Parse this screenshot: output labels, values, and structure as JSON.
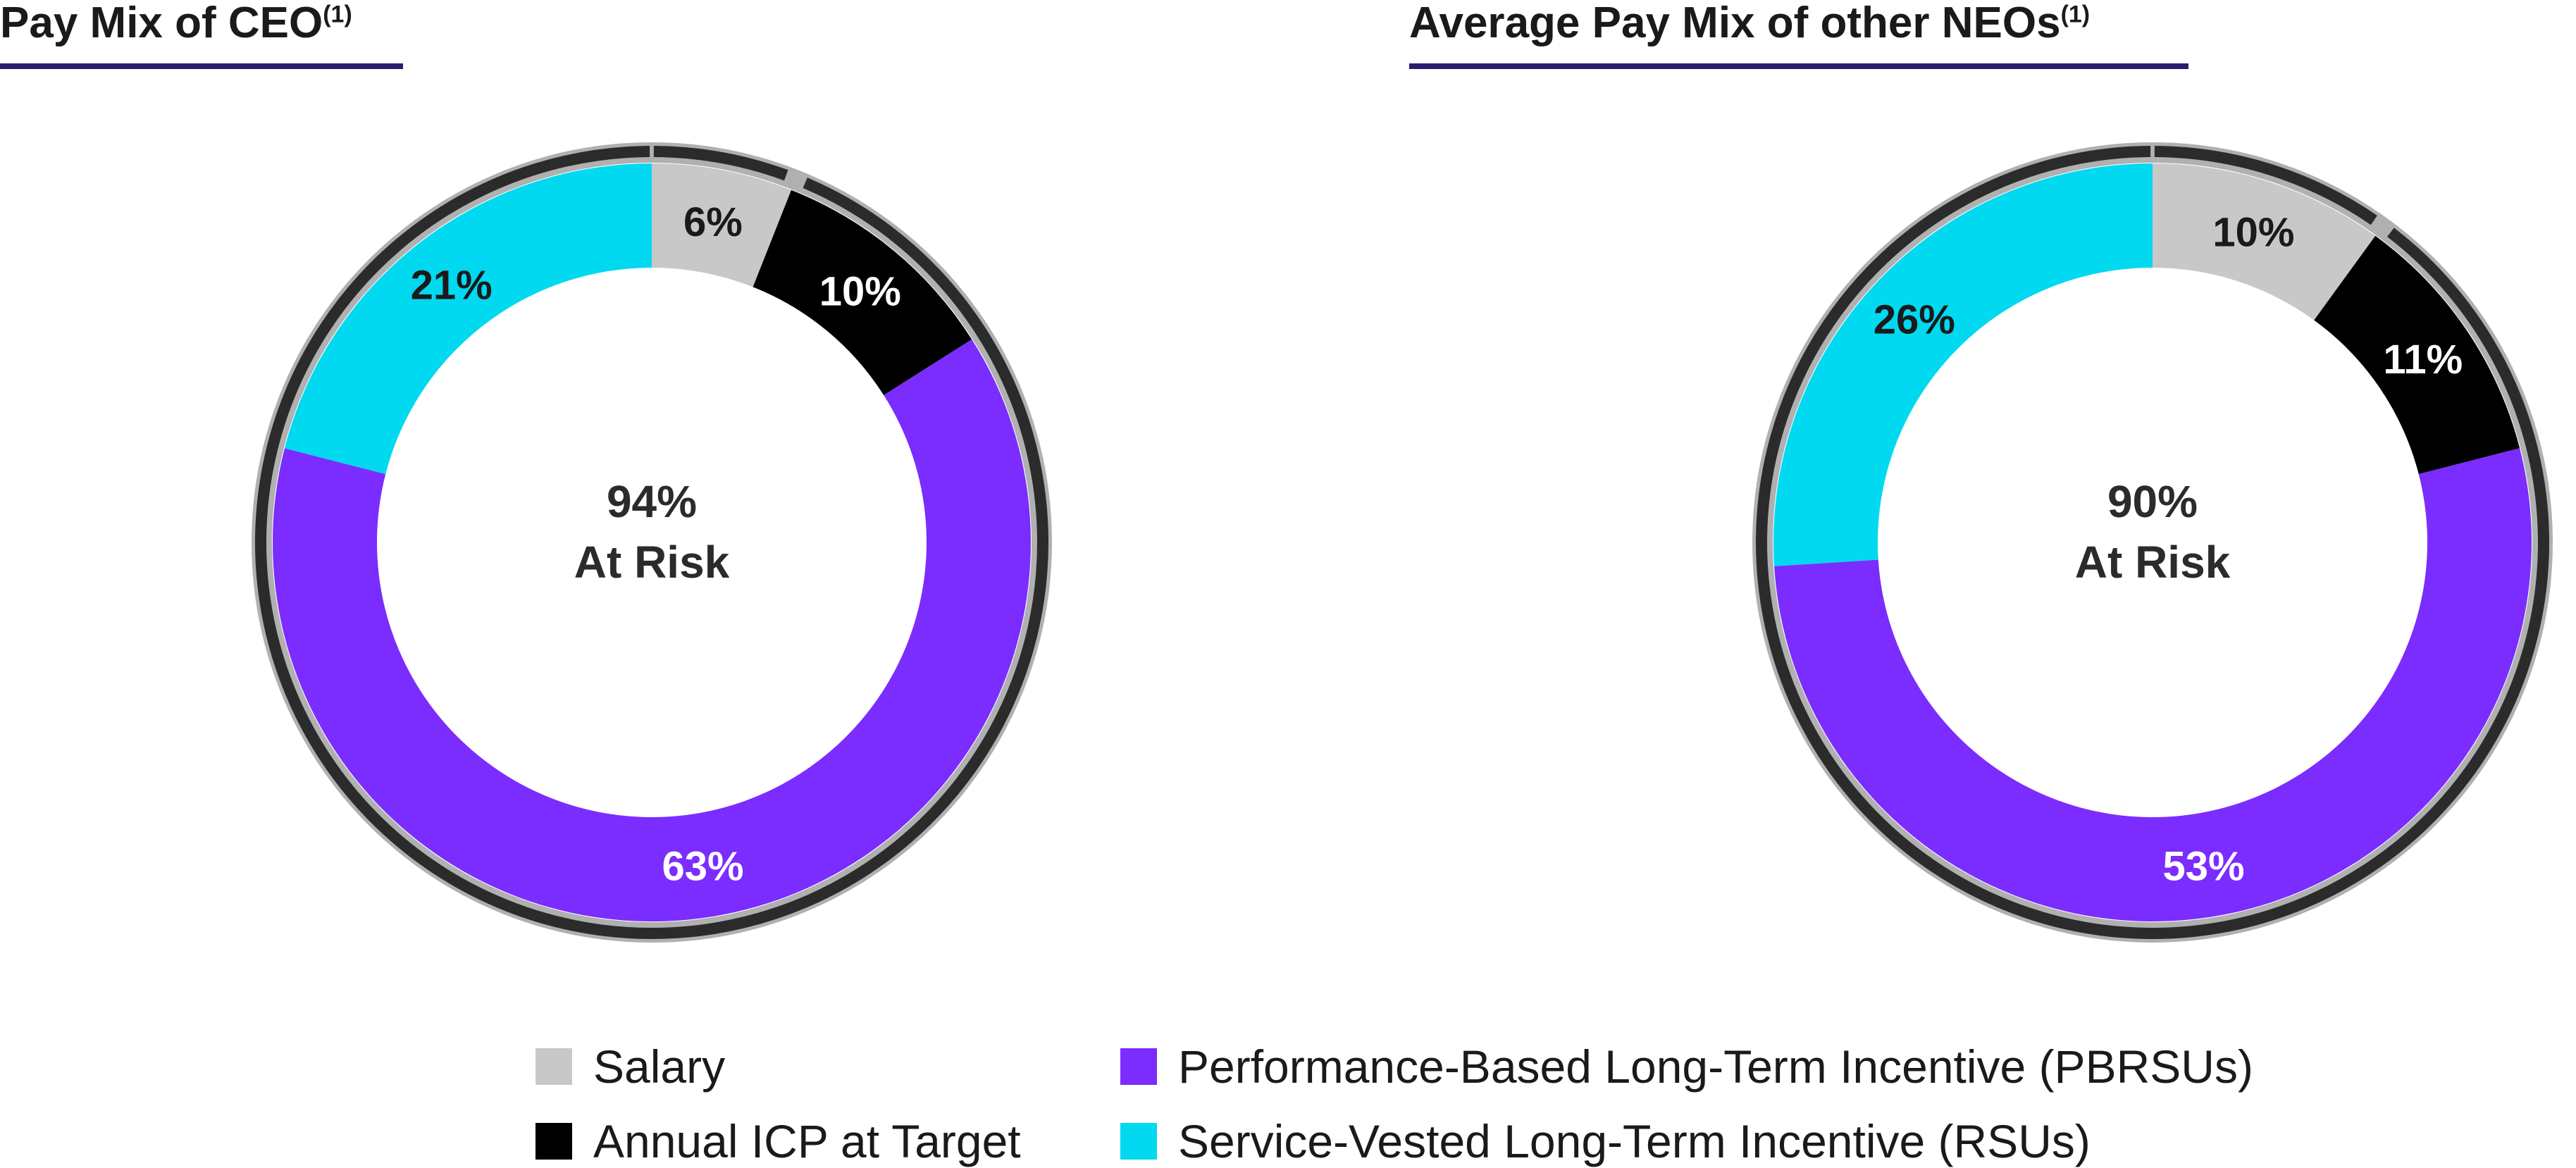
{
  "chart_data": [
    {
      "type": "pie",
      "title": "Pay Mix of CEO",
      "title_footnote": "(1)",
      "center_label": [
        "94%",
        "At Risk"
      ],
      "slices": [
        {
          "label": "Salary",
          "value": 6,
          "text": "6%",
          "color": "#c8c8c8",
          "text_color": "#1a1a1a"
        },
        {
          "label": "Annual ICP at Target",
          "value": 10,
          "text": "10%",
          "color": "#000000",
          "text_color": "#ffffff"
        },
        {
          "label": "Performance-Based Long-Term Incentive (PBRSUs)",
          "value": 63,
          "text": "63%",
          "color": "#7b2cff",
          "text_color": "#ffffff"
        },
        {
          "label": "Service-Vested Long-Term Incentive (RSUs)",
          "value": 21,
          "text": "21%",
          "color": "#00d9f0",
          "text_color": "#1a1a1a"
        }
      ],
      "at_risk_percent": 94
    },
    {
      "type": "pie",
      "title": "Average Pay Mix of other NEOs",
      "title_footnote": "(1)",
      "center_label": [
        "90%",
        "At Risk"
      ],
      "slices": [
        {
          "label": "Salary",
          "value": 10,
          "text": "10%",
          "color": "#c8c8c8",
          "text_color": "#1a1a1a"
        },
        {
          "label": "Annual ICP at Target",
          "value": 11,
          "text": "11%",
          "color": "#000000",
          "text_color": "#ffffff"
        },
        {
          "label": "Performance-Based Long-Term Incentive (PBRSUs)",
          "value": 53,
          "text": "53%",
          "color": "#7b2cff",
          "text_color": "#ffffff"
        },
        {
          "label": "Service-Vested Long-Term Incentive (RSUs)",
          "value": 26,
          "text": "26%",
          "color": "#00d9f0",
          "text_color": "#1a1a1a"
        }
      ],
      "at_risk_percent": 90
    }
  ],
  "legend": [
    {
      "label": "Salary",
      "color": "#c8c8c8"
    },
    {
      "label": "Annual ICP at Target",
      "color": "#000000"
    },
    {
      "label": "Performance-Based Long-Term Incentive (PBRSUs)",
      "color": "#7b2cff"
    },
    {
      "label": "Service-Vested Long-Term Incentive (RSUs)",
      "color": "#00d9f0"
    }
  ],
  "colors": {
    "title_rule": "#2a1d6e",
    "outer_ring": "#b0b0b0",
    "outer_arc": "#2b2b2b"
  }
}
